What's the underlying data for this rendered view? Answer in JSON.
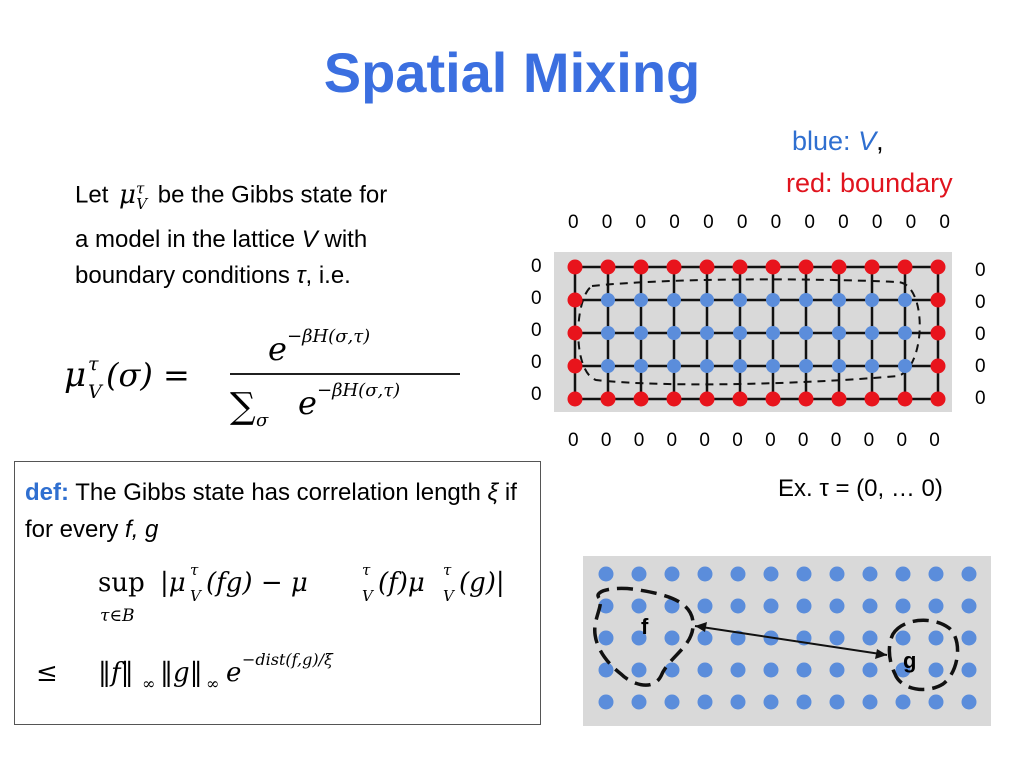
{
  "title": "Spatial Mixing",
  "legend": {
    "blue_prefix": "blue:",
    "blue_symbol": "V",
    "blue_suffix": ",",
    "red": "red: boundary",
    "blue_color": "#2f6fd0",
    "red_color": "#e0141e"
  },
  "intro": {
    "let": "Let",
    "line1_rest": "be the Gibbs state for",
    "line2_pre": "a model in the lattice",
    "line2_symbol": "V",
    "line2_post": "with",
    "line3_pre": "boundary conditions",
    "line3_symbol": "τ",
    "line3_post": ", i.e."
  },
  "formulas": {
    "mu_symbol": "μ",
    "mu_sup": "τ",
    "mu_sub": "V",
    "lhs_arg": "(σ) =",
    "numerator": "e",
    "numerator_exp": "−βH(σ,τ)",
    "denominator_sum": "∑",
    "denominator_sub": "σ",
    "denominator_exp": "−βH(σ,τ)",
    "sup_label": "sup",
    "sup_sub": "τ∈B",
    "sup_expr_1": "|μ",
    "sup_expr_2": "(fg) − μ",
    "sup_expr_3": "(f)μ",
    "sup_expr_4": "(g)|",
    "leq": "≤",
    "bound_expr": "‖f‖",
    "bound_inf": "∞",
    "bound_expr_2": "‖g‖",
    "bound_exp": "−dist(f,g)/ξ"
  },
  "zeros": {
    "top": [
      "0",
      "0",
      "0",
      "0",
      "0",
      "0",
      "0",
      "0",
      "0",
      "0",
      "0",
      "0"
    ],
    "bottom": [
      "0",
      "0",
      "0",
      "0",
      "0",
      "0",
      "0",
      "0",
      "0",
      "0",
      "0",
      "0"
    ],
    "left": [
      "0",
      "0",
      "0",
      "0",
      "0"
    ],
    "right": [
      "0",
      "0",
      "0",
      "0",
      "0"
    ]
  },
  "example": "Ex. τ = (0, … 0)",
  "definition": {
    "label": "def:",
    "text_pre": "The Gibbs state has correlation length",
    "xi": "ξ",
    "text_mid": "if for every",
    "fg": "f, g"
  },
  "lattice_labels": {
    "f": "f",
    "g": "g"
  },
  "colors": {
    "title": "#3b6fe0",
    "red_dot": "#e8141c",
    "blue_dot": "#5b8ddb",
    "panel": "#d9d9d9"
  }
}
